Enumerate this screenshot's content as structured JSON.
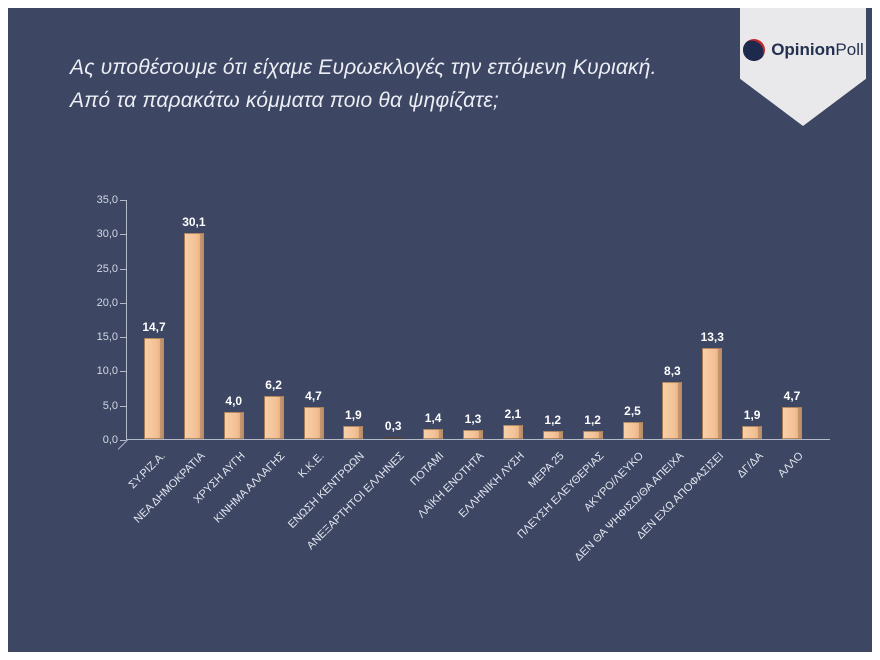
{
  "slide": {
    "title_line1": "Ας υποθέσουμε ότι είχαμε Ευρωεκλογές την επόμενη Κυριακή.",
    "title_line2": "Από τα παρακάτω κόμματα ποιο θα ψηφίζατε;"
  },
  "logo": {
    "brand_bold": "Opinion",
    "brand_regular": "Poll",
    "sphere_dark": "#1e2a4d",
    "sphere_red": "#c1272d"
  },
  "chart_data": {
    "type": "bar",
    "title": "",
    "xlabel": "",
    "ylabel": "",
    "ylim": [
      0,
      35
    ],
    "grid": false,
    "legend": "none",
    "bar_color": "#f3c094",
    "categories": [
      "ΣΥ.ΡΙΖ.Α.",
      "ΝΕΑ ΔΗΜΟΚΡΑΤΙΑ",
      "ΧΡΥΣΗ ΑΥΓΗ",
      "ΚΙΝΗΜΑ ΑΛΛΑΓΗΣ",
      "Κ.Κ.Ε.",
      "ΕΝΩΣΗ ΚΕΝΤΡΩΩΝ",
      "ΑΝΕΞΑΡΤΗΤΟΙ ΕΛΛΗΝΕΣ",
      "ΠΟΤΑΜΙ",
      "ΛΑΪΚΗ ΕΝΟΤΗΤΑ",
      "ΕΛΛΗΝΙΚΗ ΛΥΣΗ",
      "ΜΕΡΑ 25",
      "ΠΛΕΥΣΗ ΕΛΕΥΘΕΡΙΑΣ",
      "ΑΚΥΡΟ/ΛΕΥΚΟ",
      "ΔΕΝ ΘΑ ΨΗΦΙΣΩ/ΘΑ ΑΠΕΙΧΑ",
      "ΔΕΝ ΕΧΩ ΑΠΟΦΑΣΙΣΕΙ",
      "ΔΓ/ΔΑ",
      "ΑΛΛΟ"
    ],
    "values": [
      14.7,
      30.1,
      4.0,
      6.2,
      4.7,
      1.9,
      0.3,
      1.4,
      1.3,
      2.1,
      1.2,
      1.2,
      2.5,
      8.3,
      13.3,
      1.9,
      4.7
    ],
    "value_labels": [
      "14,7",
      "30,1",
      "4,0",
      "6,2",
      "4,7",
      "1,9",
      "0,3",
      "1,4",
      "1,3",
      "2,1",
      "1,2",
      "1,2",
      "2,5",
      "8,3",
      "13,3",
      "1,9",
      "4,7"
    ],
    "y_ticks": [
      "35,0",
      "30,0",
      "25,0",
      "20,0",
      "15,0",
      "10,0",
      "5,0",
      "0,0"
    ]
  }
}
